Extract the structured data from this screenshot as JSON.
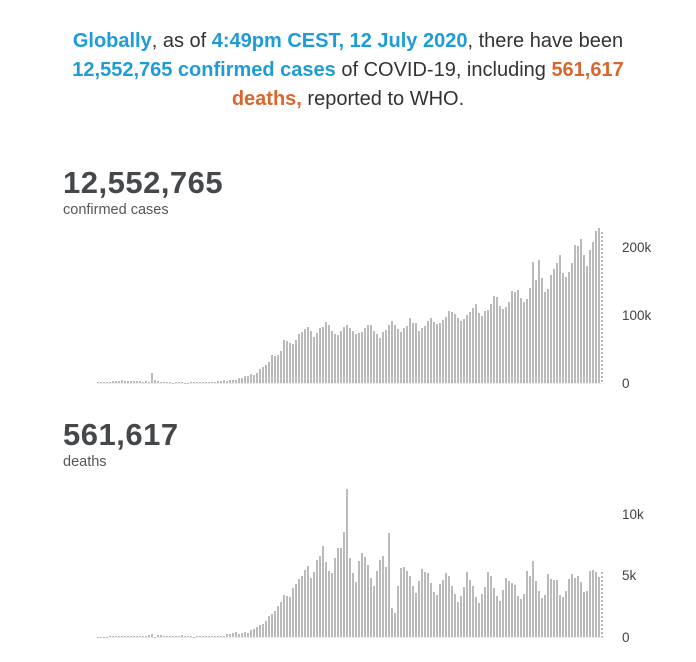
{
  "headline": {
    "segments": [
      {
        "text": "Globally",
        "style": "blue"
      },
      {
        "text": ", as of ",
        "style": "plain"
      },
      {
        "text": "4:49pm CEST, 12 July 2020",
        "style": "blue"
      },
      {
        "text": ", there have been ",
        "style": "plain"
      },
      {
        "text": "12,552,765 confirmed cases",
        "style": "blue"
      },
      {
        "text": " of COVID-19, including ",
        "style": "plain"
      },
      {
        "text": "561,617 deaths,",
        "style": "orange"
      },
      {
        "text": " reported to WHO.",
        "style": "plain"
      }
    ]
  },
  "colors": {
    "accent_blue": "#1f9bd7",
    "accent_orange": "#d9662c",
    "bar_gray": "#bababa",
    "text_dark": "#333333",
    "stat_dark": "#44484b"
  },
  "chart_data": [
    {
      "type": "bar",
      "title": "12,552,765",
      "subtitle": "confirmed cases",
      "legend": "none",
      "grid": false,
      "x_axis_labels": "none (daily bars, late January through 12 July 2020)",
      "y_axis_side": "right",
      "y_ticks": [
        {
          "label": "200k",
          "value": 200000
        },
        {
          "label": "100k",
          "value": 100000
        },
        {
          "label": "0",
          "value": 0
        }
      ],
      "ylim": [
        0,
        234000
      ],
      "partial_last_bar": true,
      "values": [
        1750,
        1460,
        1740,
        1980,
        2100,
        2590,
        2830,
        3240,
        3930,
        3700,
        3160,
        3400,
        2680,
        2970,
        2560,
        2030,
        2540,
        2030,
        15150,
        4050,
        2640,
        2160,
        2050,
        1890,
        1750,
        530,
        820,
        890,
        990,
        650,
        560,
        860,
        1150,
        1360,
        1270,
        1760,
        1740,
        1940,
        2090,
        2220,
        2240,
        2870,
        3730,
        3610,
        3990,
        4130,
        4600,
        6700,
        7500,
        9750,
        10950,
        13900,
        11500,
        15100,
        20600,
        24300,
        26100,
        31400,
        40800,
        39800,
        41600,
        47600,
        63200,
        62500,
        58400,
        57600,
        63200,
        72800,
        75600,
        79300,
        82500,
        77200,
        68400,
        73600,
        81000,
        82900,
        89600,
        85600,
        76500,
        71800,
        70100,
        76600,
        82600,
        85700,
        81600,
        76600,
        72800,
        73900,
        75300,
        81500,
        84900,
        85900,
        76500,
        71900,
        66300,
        74600,
        77700,
        84800,
        91300,
        86100,
        79300,
        74800,
        81100,
        83400,
        95800,
        87700,
        88900,
        75900,
        81600,
        84200,
        91400,
        96100,
        90100,
        86300,
        88900,
        92600,
        96800,
        106000,
        103900,
        101500,
        95900,
        91300,
        93500,
        100200,
        104500,
        110000,
        115800,
        103700,
        98700,
        105600,
        108100,
        116900,
        128400,
        127100,
        113700,
        108900,
        111300,
        118500,
        135700,
        133300,
        136400,
        125800,
        119500,
        124300,
        140500,
        178000,
        152000,
        181000,
        154900,
        133300,
        138800,
        158600,
        167700,
        177000,
        188700,
        161800,
        156100,
        163900,
        176100,
        203800,
        201000,
        212300,
        188100,
        172500,
        196100,
        207800,
        223800,
        228100,
        222000
      ]
    },
    {
      "type": "bar",
      "title": "561,617",
      "subtitle": "deaths",
      "legend": "none",
      "grid": false,
      "x_axis_labels": "none (daily bars, late January through 12 July 2020)",
      "y_axis_side": "right",
      "y_ticks": [
        {
          "label": "10k",
          "value": 10000
        },
        {
          "label": "5k",
          "value": 5000
        },
        {
          "label": "0",
          "value": 0
        }
      ],
      "ylim": [
        0,
        12500
      ],
      "partial_last_bar": true,
      "values": [
        25,
        26,
        26,
        38,
        43,
        46,
        45,
        58,
        64,
        66,
        72,
        73,
        86,
        89,
        97,
        108,
        97,
        146,
        254,
        13,
        144,
        142,
        106,
        98,
        115,
        118,
        109,
        97,
        150,
        71,
        52,
        109,
        29,
        44,
        47,
        58,
        67,
        72,
        86,
        99,
        106,
        98,
        101,
        229,
        211,
        321,
        431,
        269,
        342,
        441,
        356,
        532,
        611,
        795,
        963,
        1057,
        1297,
        1722,
        1886,
        2075,
        2503,
        2838,
        3419,
        3338,
        3215,
        3963,
        4276,
        4720,
        4946,
        5476,
        5798,
        4770,
        5311,
        6244,
        6571,
        7421,
        6080,
        5320,
        5232,
        6401,
        7193,
        7197,
        8493,
        12000,
        6409,
        5160,
        4461,
        6190,
        6794,
        6477,
        5838,
        4806,
        4134,
        5396,
        6276,
        6540,
        5722,
        8450,
        2380,
        1980,
        4156,
        5570,
        5705,
        5368,
        4949,
        4169,
        3543,
        4568,
        5504,
        5310,
        5217,
        4391,
        3666,
        3378,
        4308,
        4663,
        5173,
        4963,
        4134,
        3482,
        2827,
        3318,
        4020,
        5311,
        4656,
        4155,
        3236,
        2786,
        3504,
        4024,
        5247,
        4975,
        3981,
        3364,
        2897,
        3820,
        4801,
        4534,
        4399,
        4235,
        3341,
        3103,
        3508,
        5324,
        4918,
        6150,
        4583,
        3771,
        3169,
        3390,
        5135,
        4697,
        4590,
        4634,
        3440,
        3271,
        3758,
        4714,
        5122,
        4808,
        4950,
        4497,
        3634,
        3740,
        5338,
        5467,
        5290,
        4877,
        5300
      ]
    }
  ]
}
